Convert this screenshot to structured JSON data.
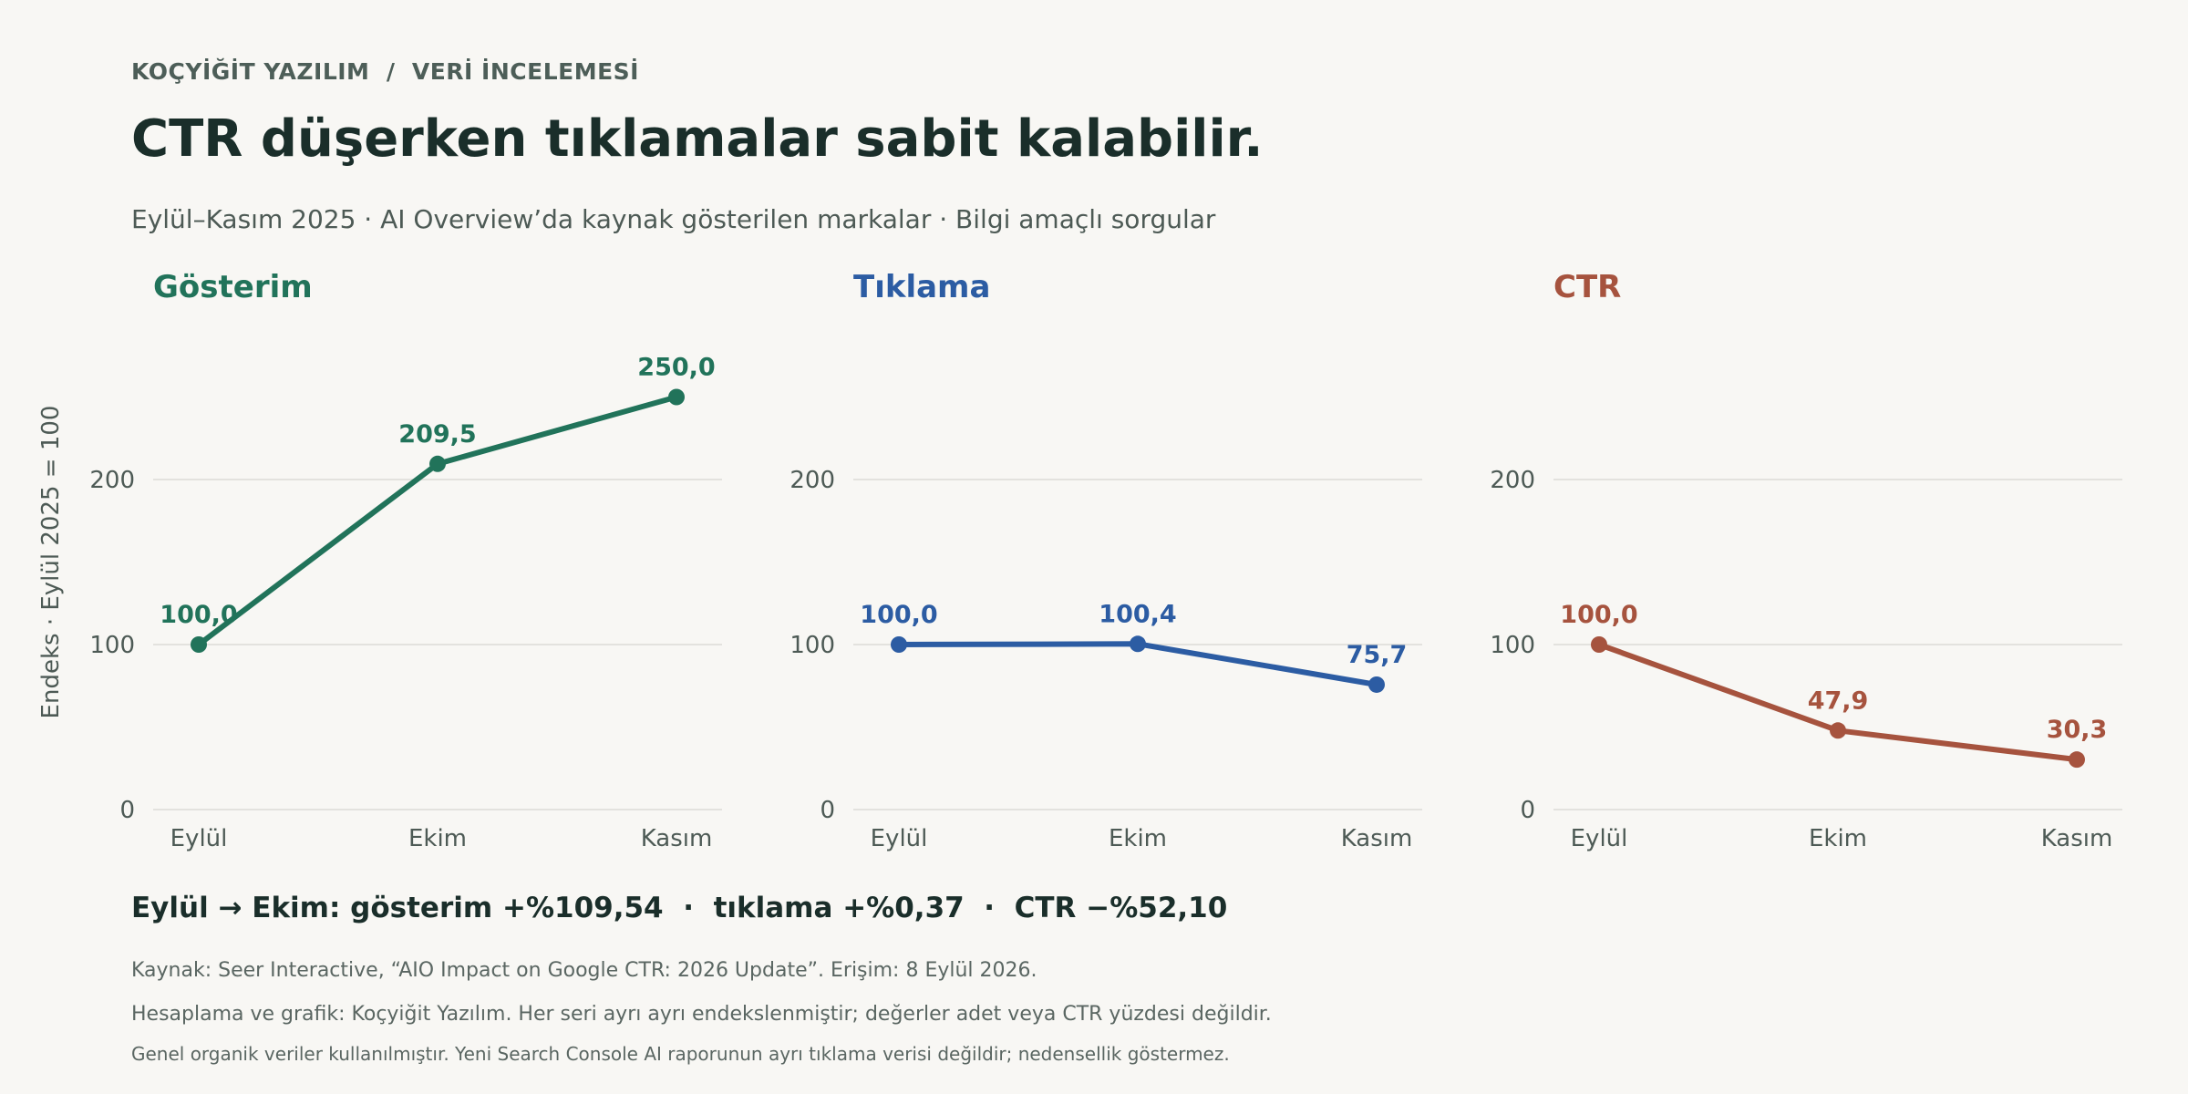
{
  "header": {
    "brand": "KOÇYİĞİT YAZILIM  /  VERİ İNCELEMESİ",
    "title": "CTR düşerken tıklamalar sabit kalabilir.",
    "subtitle": "Eylül–Kasım 2025 · AI Overview’da kaynak gösterilen markalar · Bilgi amaçlı sorgular"
  },
  "chart_data": [
    {
      "type": "line",
      "title": "Gösterim",
      "color": "#21735a",
      "categories": [
        "Eylül",
        "Ekim",
        "Kasım"
      ],
      "values": [
        100.0,
        209.5,
        250.0
      ],
      "labels": [
        "100,0",
        "209,5",
        "250,0"
      ],
      "ylabel": "Endeks · Eylül 2025 = 100",
      "yticks": [
        0,
        100,
        200
      ],
      "ylim": [
        0,
        300
      ],
      "grid": true
    },
    {
      "type": "line",
      "title": "Tıklama",
      "color": "#2c5ca3",
      "categories": [
        "Eylül",
        "Ekim",
        "Kasım"
      ],
      "values": [
        100.0,
        100.4,
        75.7
      ],
      "labels": [
        "100,0",
        "100,4",
        "75,7"
      ],
      "yticks": [
        0,
        100,
        200
      ],
      "ylim": [
        0,
        300
      ],
      "grid": true
    },
    {
      "type": "line",
      "title": "CTR",
      "color": "#a6533e",
      "categories": [
        "Eylül",
        "Ekim",
        "Kasım"
      ],
      "values": [
        100.0,
        47.9,
        30.3
      ],
      "labels": [
        "100,0",
        "47,9",
        "30,3"
      ],
      "yticks": [
        0,
        100,
        200
      ],
      "ylim": [
        0,
        300
      ],
      "grid": true
    }
  ],
  "summary": "Eylül → Ekim: gösterim +%109,54  ·  tıklama +%0,37  ·  CTR −%52,10",
  "notes": {
    "source": "Kaynak: Seer Interactive, “AIO Impact on Google CTR: 2026 Update”. Erişim: 8 Eylül 2026.",
    "method": "Hesaplama ve grafik: Koçyiğit Yazılım. Her seri ayrı ayrı endekslenmiştir; değerler adet veya CTR yüzdesi değildir.",
    "disclaimer": "Genel organik veriler kullanılmıştır. Yeni Search Console AI raporunun ayrı tıklama verisi değildir; nedensellik göstermez."
  }
}
